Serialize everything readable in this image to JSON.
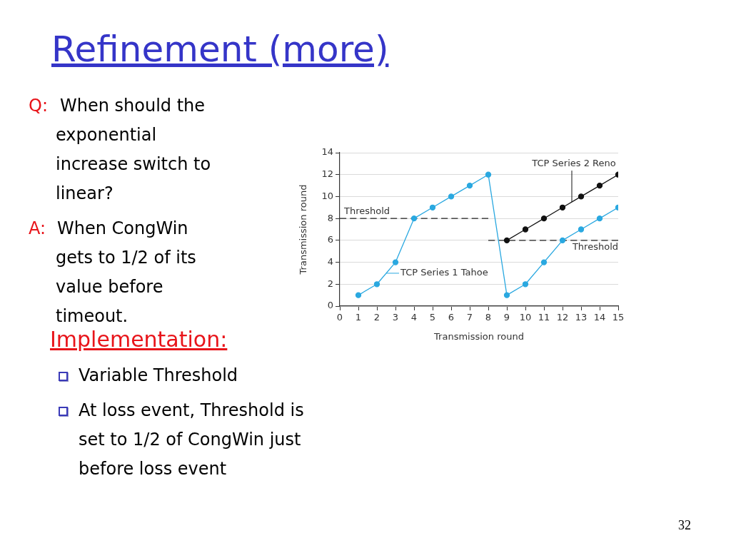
{
  "chart_data": {
    "type": "line",
    "title": "Refinement (more)",
    "xlabel": "Transmission round",
    "ylabel": "Transmission round",
    "x": [
      1,
      2,
      3,
      4,
      5,
      6,
      7,
      8,
      9,
      10,
      11,
      12,
      13,
      14,
      15
    ],
    "series": [
      {
        "name": "TCP Series 1 Tahoe",
        "color": "#2aa8e0",
        "values": [
          1,
          2,
          4,
          8,
          9,
          10,
          11,
          12,
          1,
          2,
          4,
          6,
          7,
          8,
          9
        ]
      },
      {
        "name": "TCP Series 2 Reno",
        "color": "#111111",
        "x": [
          9,
          10,
          11,
          12,
          13,
          14,
          15
        ],
        "values": [
          6,
          7,
          8,
          9,
          10,
          11,
          12
        ]
      },
      {
        "name": "Threshold",
        "type": "line",
        "color": "#222222",
        "x": [
          0,
          8
        ],
        "values": [
          8,
          8
        ],
        "line_style": "dashed",
        "marker": "none"
      },
      {
        "name": "Threshold",
        "type": "line",
        "color": "#222222",
        "x": [
          8,
          15
        ],
        "values": [
          6,
          6
        ],
        "line_style": "dashed",
        "marker": "none"
      }
    ],
    "xlim": [
      0,
      15
    ],
    "xticks": [
      0,
      1,
      2,
      3,
      4,
      5,
      6,
      7,
      8,
      9,
      10,
      11,
      12,
      13,
      14,
      15
    ],
    "ylim": [
      0,
      14
    ],
    "yticks": [
      0,
      2,
      4,
      6,
      8,
      10,
      12,
      14
    ],
    "grid": "y",
    "marker": "circle",
    "annotations": [
      "Q:",
      "When should the exponential increase switch to linear?",
      "A:",
      "When CongWin gets to 1/2 of its value before timeout.",
      "Implementation:",
      "Variable Threshold",
      "At loss event, Threshold is set to 1/2 of CongWin just before loss event",
      "32"
    ]
  }
}
